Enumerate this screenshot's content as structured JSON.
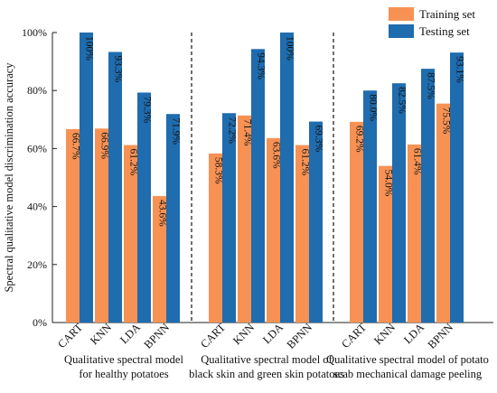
{
  "chart_data": {
    "type": "bar",
    "ylabel": "Spectral qualitative model discrimination accuracy",
    "ylim": [
      0,
      100
    ],
    "yticks": [
      0,
      20,
      40,
      60,
      80,
      100
    ],
    "ytick_labels": [
      "0%",
      "20%",
      "40%",
      "60%",
      "80%",
      "100%"
    ],
    "legend_position": "top-right",
    "colors": {
      "Training set": "#F79254",
      "Testing set": "#1F6CAE"
    },
    "series_names": [
      "Training set",
      "Testing set"
    ],
    "groups": [
      {
        "caption_lines": [
          "Qualitative spectral model",
          "for healthy potatoes"
        ],
        "categories": [
          "CART",
          "KNN",
          "LDA",
          "BPNN"
        ],
        "training": [
          66.7,
          66.9,
          61.2,
          43.6
        ],
        "testing": [
          100,
          93.3,
          79.3,
          71.9
        ],
        "training_labels": [
          "66.7%",
          "66.9%",
          "61.2%",
          "43.6%"
        ],
        "testing_labels": [
          "100%",
          "93.3%",
          "79.3%",
          "71.9%"
        ]
      },
      {
        "caption_lines": [
          "Qualitative spectral model of",
          "black skin and green skin potatoes"
        ],
        "categories": [
          "CART",
          "KNN",
          "LDA",
          "BPNN"
        ],
        "training": [
          58.3,
          71.4,
          63.6,
          61.2
        ],
        "testing": [
          72.2,
          94.3,
          100,
          69.3
        ],
        "training_labels": [
          "58.3%",
          "71.4%",
          "63.6%",
          "61.2%"
        ],
        "testing_labels": [
          "72.2%",
          "94.3%",
          "100%",
          "69.3%"
        ]
      },
      {
        "caption_lines": [
          "Qualitative spectral model of potato",
          "scab mechanical damage peeling"
        ],
        "categories": [
          "CART",
          "KNN",
          "LDA",
          "BPNN"
        ],
        "training": [
          69.2,
          54.0,
          61.4,
          75.5
        ],
        "testing": [
          80.0,
          82.5,
          87.5,
          93.1
        ],
        "training_labels": [
          "69.2%",
          "54.0%",
          "61.4%",
          "75.5%"
        ],
        "testing_labels": [
          "80.0%",
          "82.5%",
          "87.5%",
          "93.1%"
        ]
      }
    ]
  }
}
